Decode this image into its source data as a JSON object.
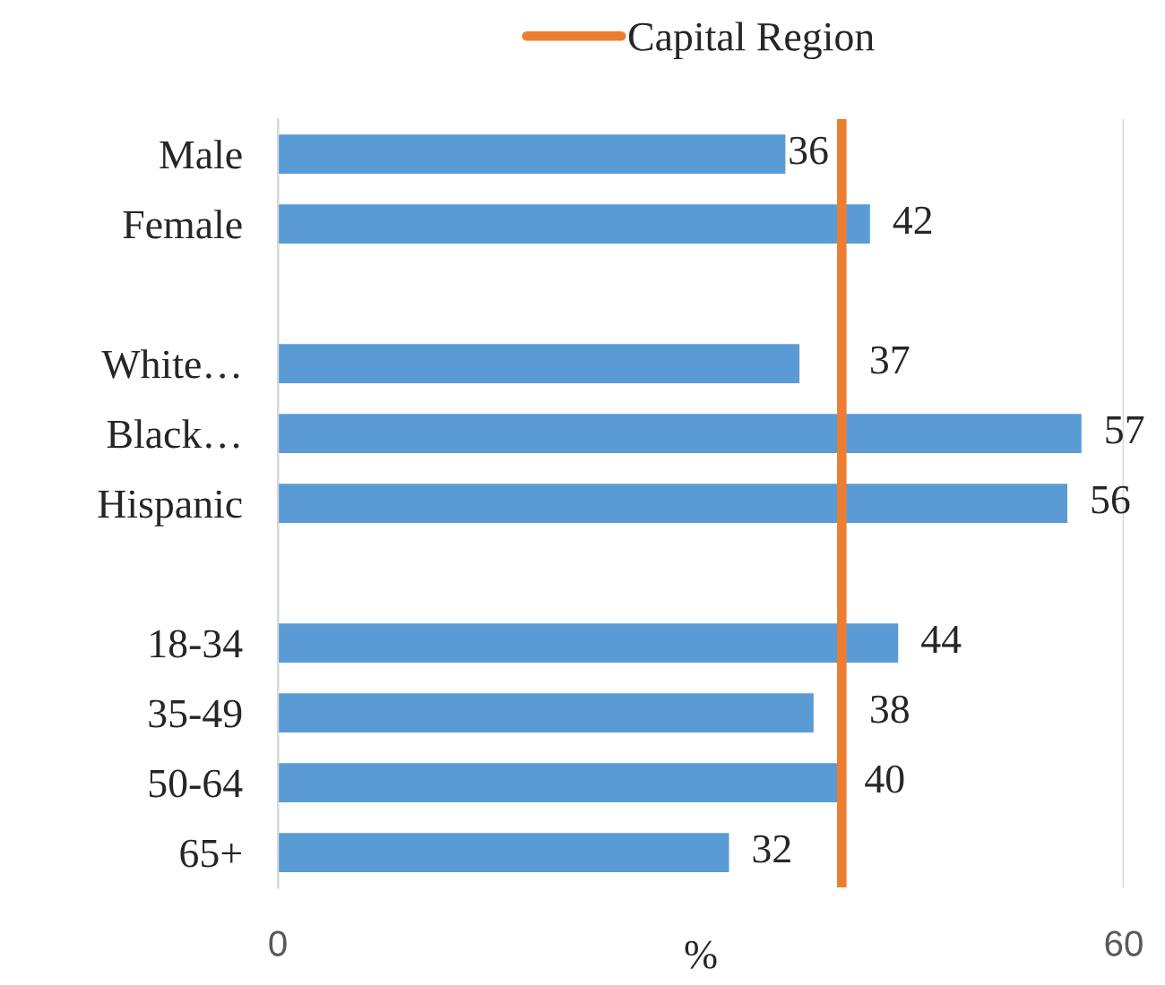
{
  "chart_data": {
    "type": "bar",
    "orientation": "horizontal",
    "categories": [
      "Male",
      "Female",
      null,
      "White…",
      "Black…",
      "Hispanic",
      null,
      "18-34",
      "35-49",
      "50-64",
      "65+"
    ],
    "values": [
      36,
      42,
      null,
      37,
      57,
      56,
      null,
      44,
      38,
      40,
      32
    ],
    "color": "#5b9bd5",
    "xlabel": "%",
    "xlim": [
      0,
      60
    ],
    "xticks": [
      0,
      60
    ],
    "grid": "x",
    "data_labels": true,
    "ref_lines": [
      {
        "axis": "x",
        "value": 40,
        "label": "Capital Region",
        "color": "#ed7d31"
      }
    ],
    "legend": "top"
  }
}
